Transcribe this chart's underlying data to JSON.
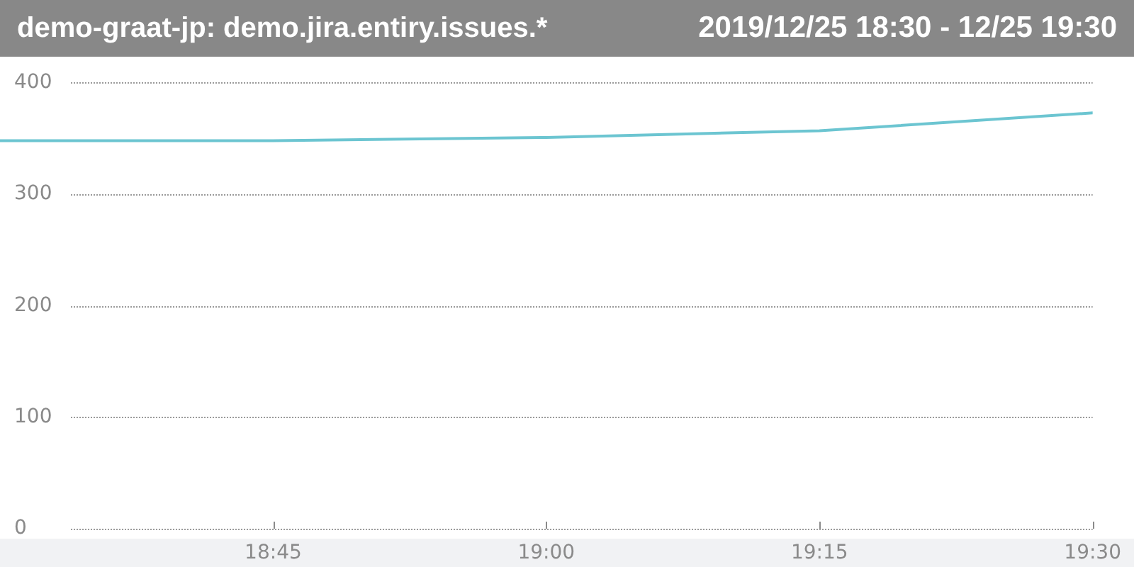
{
  "chart_data": {
    "type": "line",
    "title": "demo-graat-jp: demo.jira.entiry.issues.*",
    "subtitle": "2019/12/25 18:30 - 12/25 19:30",
    "x": [
      18.5,
      18.75,
      19.0,
      19.25,
      19.5
    ],
    "series": [
      {
        "color": "#6cc5d1",
        "values": [
          348,
          348,
          351,
          357,
          373
        ]
      }
    ],
    "xlim": [
      18.5,
      19.5
    ],
    "xticks": [
      {
        "value": 18.75,
        "label": "18:45"
      },
      {
        "value": 19.0,
        "label": "19:00"
      },
      {
        "value": 19.25,
        "label": "19:15"
      },
      {
        "value": 19.5,
        "label": "19:30"
      }
    ],
    "ylim": [
      0,
      400
    ],
    "yticks": [
      0,
      100,
      200,
      300,
      400
    ],
    "grid": "y",
    "marker": "none",
    "line_style": "solid"
  }
}
